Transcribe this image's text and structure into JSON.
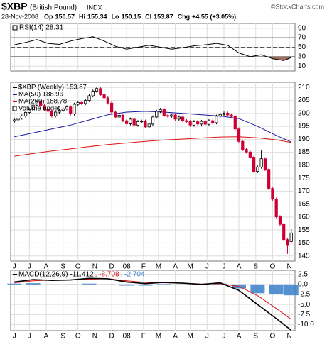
{
  "header": {
    "symbol": "$XBP",
    "name": "(British Pound)",
    "exchange": "INDX",
    "credit": "©StockCharts.com",
    "date": "28-Nov-2008",
    "fields": [
      {
        "label": "Op",
        "value": "150.57"
      },
      {
        "label": "Hi",
        "value": "155.34"
      },
      {
        "label": "Lo",
        "value": "150.15"
      },
      {
        "label": "Cl",
        "value": "153.87"
      },
      {
        "label": "Chg",
        "value": "+4.55 (+3.05%)"
      }
    ]
  },
  "chart_data": [
    {
      "type": "line",
      "title": "RSI(14) 28.31",
      "ylim": [
        0,
        100
      ],
      "yticks": [
        10,
        30,
        50,
        70,
        90
      ],
      "bands": [
        30,
        70
      ],
      "midline": 50,
      "band_fill": "#a0705a",
      "xlim": [
        -1,
        75
      ],
      "grid": true,
      "series": [
        {
          "color": "#000000",
          "x": [
            0,
            3,
            6,
            9,
            12,
            15,
            18,
            21,
            24,
            27,
            30,
            33,
            36,
            39,
            42,
            45,
            48,
            51,
            54,
            57,
            60,
            63,
            66,
            69,
            72,
            74
          ],
          "values": [
            55,
            60,
            66,
            58,
            56,
            63,
            68,
            72,
            63,
            52,
            46,
            50,
            54,
            50,
            46,
            49,
            53,
            55,
            58,
            54,
            38,
            30,
            34,
            26,
            22,
            28.31
          ]
        }
      ]
    },
    {
      "type": "candlestick",
      "ylim": [
        143,
        212
      ],
      "yticks": [
        145,
        150,
        155,
        160,
        165,
        170,
        175,
        180,
        185,
        190,
        195,
        200,
        205,
        210
      ],
      "xlim": [
        -1,
        75
      ],
      "grid": true,
      "up_color": "#000000",
      "down_color": "#cc0033",
      "volume_label": "Volume undef",
      "xticks": [
        {
          "value": 0,
          "label": "J"
        },
        {
          "value": 4,
          "label": "J"
        },
        {
          "value": 8.5,
          "label": "A"
        },
        {
          "value": 13,
          "label": "S"
        },
        {
          "value": 17,
          "label": "O"
        },
        {
          "value": 21.5,
          "label": "N"
        },
        {
          "value": 26,
          "label": "D"
        },
        {
          "value": 30,
          "label": "08"
        },
        {
          "value": 34.5,
          "label": "F"
        },
        {
          "value": 38.5,
          "label": "M"
        },
        {
          "value": 43,
          "label": "A"
        },
        {
          "value": 47,
          "label": "M"
        },
        {
          "value": 51.5,
          "label": "J"
        },
        {
          "value": 56,
          "label": "J"
        },
        {
          "value": 60,
          "label": "A"
        },
        {
          "value": 64.5,
          "label": "S"
        },
        {
          "value": 69,
          "label": "O"
        },
        {
          "value": 73.5,
          "label": "N"
        }
      ],
      "candles": {
        "name": "$XBP (Weekly) 153.87",
        "open": [
          197.0,
          197.5,
          198.2,
          199.0,
          200.4,
          201.5,
          203.2,
          204.5,
          203.0,
          201.5,
          200.8,
          199.0,
          200.5,
          201.2,
          201.8,
          202.5,
          199.8,
          203.5,
          204.2,
          203.8,
          205.0,
          206.8,
          208.6,
          209.6,
          207.2,
          206.0,
          204.0,
          200.5,
          198.6,
          199.3,
          197.2,
          196.0,
          197.8,
          195.5,
          196.8,
          197.0,
          194.8,
          195.9,
          198.6,
          200.8,
          201.5,
          199.2,
          198.9,
          199.4,
          197.8,
          198.6,
          197.2,
          196.8,
          195.5,
          196.8,
          195.9,
          196.9,
          195.8,
          197.2,
          196.4,
          198.9,
          199.6,
          200.1,
          199.4,
          198.8,
          194.0,
          189.2,
          186.1,
          185.1,
          183.1,
          177.6,
          179.3,
          182.5,
          178.4,
          171.0,
          166.9,
          160.1,
          157.2,
          151.3,
          150.57
        ],
        "high": [
          198.1,
          198.8,
          199.6,
          201.0,
          202.1,
          203.8,
          205.1,
          205.1,
          203.6,
          202.1,
          201.4,
          201.1,
          201.8,
          202.4,
          203.1,
          203.1,
          204.1,
          204.8,
          204.8,
          205.6,
          207.4,
          209.2,
          210.2,
          210.2,
          207.8,
          206.6,
          204.6,
          201.1,
          199.9,
          199.9,
          197.8,
          198.4,
          198.4,
          197.4,
          197.6,
          197.6,
          196.5,
          199.2,
          201.4,
          202.1,
          202.1,
          199.8,
          200.0,
          200.0,
          199.2,
          199.2,
          197.8,
          197.4,
          197.4,
          197.4,
          197.5,
          197.5,
          197.8,
          197.8,
          199.5,
          200.2,
          200.7,
          200.7,
          200.0,
          199.4,
          194.6,
          189.8,
          186.7,
          185.7,
          183.7,
          179.9,
          186.0,
          183.1,
          179.0,
          171.6,
          167.5,
          160.7,
          157.8,
          151.9,
          155.34
        ],
        "low": [
          196.4,
          196.9,
          197.6,
          198.4,
          199.8,
          200.9,
          202.6,
          202.4,
          200.9,
          200.2,
          198.4,
          198.4,
          199.9,
          200.6,
          201.2,
          199.2,
          199.2,
          202.9,
          203.2,
          203.2,
          204.4,
          206.2,
          208.0,
          206.6,
          205.4,
          203.4,
          199.9,
          198.0,
          198.0,
          196.6,
          195.4,
          195.4,
          194.9,
          194.9,
          196.2,
          194.2,
          194.2,
          195.3,
          198.0,
          200.2,
          198.6,
          198.3,
          198.3,
          197.2,
          197.2,
          196.6,
          196.2,
          194.9,
          194.9,
          195.3,
          195.3,
          195.2,
          195.2,
          195.8,
          195.8,
          198.3,
          199.0,
          198.8,
          198.2,
          193.4,
          188.6,
          185.5,
          184.5,
          182.5,
          177.0,
          177.0,
          178.7,
          177.8,
          170.4,
          166.3,
          159.5,
          156.6,
          150.7,
          145.8,
          150.15
        ],
        "close": [
          197.5,
          198.2,
          199.0,
          200.4,
          201.5,
          203.2,
          204.5,
          203.0,
          201.5,
          200.8,
          199.0,
          200.5,
          201.2,
          201.8,
          202.5,
          199.8,
          203.5,
          204.2,
          203.8,
          205.0,
          206.8,
          208.6,
          209.6,
          207.2,
          206.0,
          204.0,
          200.5,
          198.6,
          199.3,
          197.2,
          196.0,
          197.8,
          195.5,
          196.8,
          197.0,
          194.8,
          195.9,
          198.6,
          200.8,
          201.5,
          199.2,
          198.9,
          199.4,
          197.8,
          198.6,
          197.2,
          196.8,
          195.5,
          196.8,
          195.9,
          196.9,
          195.8,
          197.2,
          196.4,
          198.9,
          199.6,
          200.1,
          199.4,
          198.8,
          194.0,
          189.2,
          186.1,
          185.1,
          183.1,
          177.6,
          179.3,
          182.5,
          178.4,
          171.0,
          166.9,
          160.1,
          157.2,
          151.3,
          149.3,
          153.87
        ]
      },
      "series": [
        {
          "name": "MA(50) 188.96",
          "color": "#1a1aa0",
          "x": [
            0,
            5,
            10,
            15,
            20,
            25,
            30,
            35,
            40,
            45,
            50,
            55,
            60,
            65,
            70,
            74
          ],
          "values": [
            191.0,
            192.5,
            194.0,
            195.5,
            197.5,
            199.5,
            200.5,
            200.8,
            200.5,
            200.0,
            199.5,
            199.0,
            198.0,
            195.0,
            191.5,
            188.96
          ]
        },
        {
          "name": "MA(200) 188.78",
          "color": "#dd1111",
          "x": [
            0,
            5,
            10,
            15,
            20,
            25,
            30,
            35,
            40,
            45,
            50,
            55,
            60,
            65,
            70,
            74
          ],
          "values": [
            183.5,
            184.5,
            185.5,
            186.3,
            187.2,
            188.0,
            188.6,
            189.2,
            189.7,
            190.1,
            190.5,
            190.9,
            191.0,
            190.6,
            189.8,
            188.78
          ]
        }
      ]
    },
    {
      "type": "macd",
      "title": "MACD(12,26,9)",
      "ylim": [
        -11.5,
        3.5
      ],
      "xlim": [
        -1,
        75
      ],
      "grid": true,
      "yticks": [
        {
          "value": 2.5,
          "label": "2.5"
        },
        {
          "value": 0,
          "label": "0.0"
        },
        {
          "value": -2.5,
          "label": "-2.5"
        },
        {
          "value": -5,
          "label": "-5.0"
        },
        {
          "value": -7.5,
          "label": "-7.5"
        },
        {
          "value": -10,
          "label": "-10.0"
        }
      ],
      "legend_parts": [
        "-11.412",
        ", -8.708",
        ", -2.704"
      ],
      "x": [
        0,
        5,
        10,
        15,
        20,
        25,
        30,
        35,
        40,
        45,
        50,
        55,
        60,
        65,
        70,
        74
      ],
      "series": [
        {
          "color": "#000000",
          "values": [
            0.6,
            1.2,
            1.0,
            1.1,
            1.5,
            1.4,
            0.6,
            0.2,
            0.5,
            0.3,
            0.0,
            0.4,
            -1.5,
            -5.0,
            -8.5,
            -11.412
          ]
        },
        {
          "color": "#dd1111",
          "values": [
            0.4,
            0.9,
            1.1,
            1.1,
            1.3,
            1.4,
            0.9,
            0.5,
            0.4,
            0.3,
            0.1,
            0.2,
            -0.5,
            -2.8,
            -6.0,
            -8.708
          ]
        },
        {
          "color": "#3a7fc8",
          "values": [
            0.2,
            0.3,
            -0.1,
            0,
            0.2,
            0,
            -0.3,
            -0.3,
            0.1,
            0,
            -0.1,
            0.2,
            -1.0,
            -2.2,
            -2.5,
            -2.704
          ]
        }
      ]
    }
  ]
}
